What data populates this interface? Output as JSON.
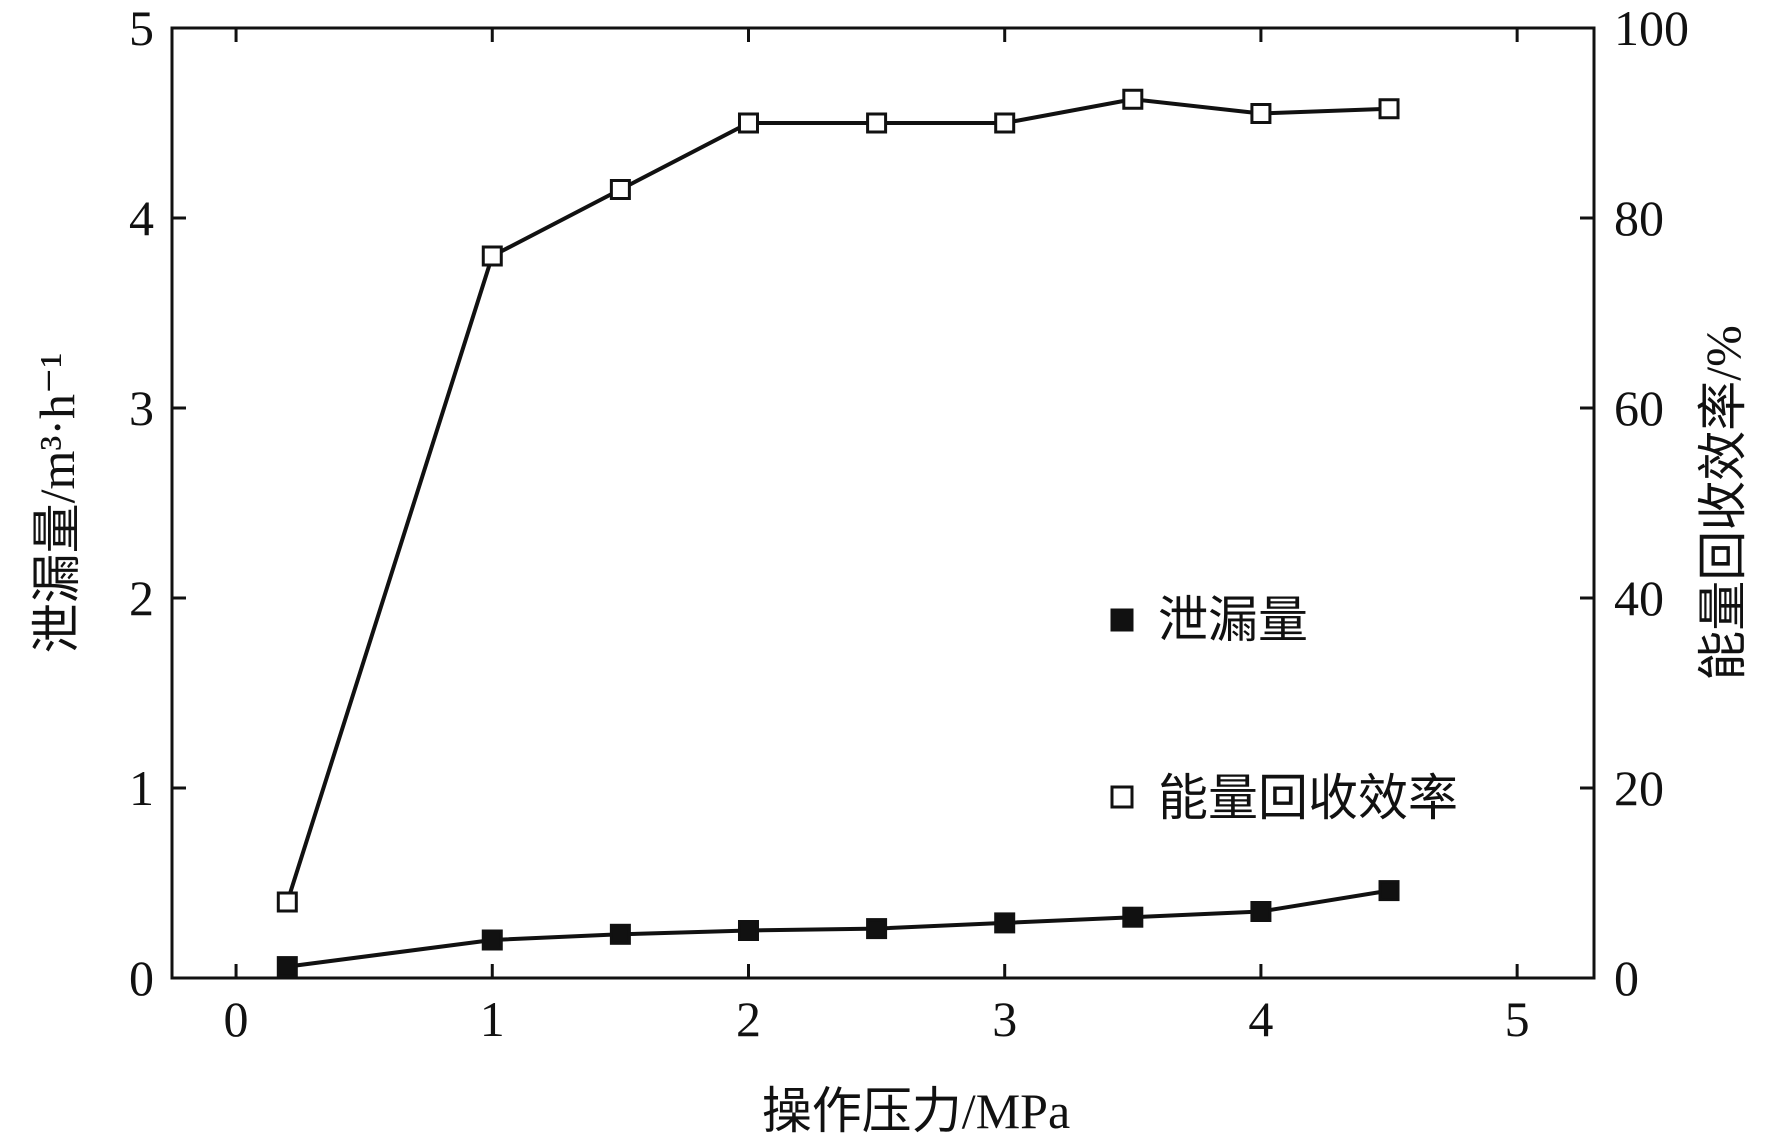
{
  "colors": {
    "ink": "#111111",
    "background": "#ffffff",
    "marker_fill_leakage": "#111111",
    "marker_fill_efficiency": "#ffffff"
  },
  "chart_data": {
    "type": "line",
    "title": "",
    "xlabel": "操作压力/MPa",
    "ylabel_left": "泄漏量/m³·h⁻¹",
    "ylabel_right": "能量回收效率/%",
    "xlim": [
      -0.25,
      5.3
    ],
    "ylim_left": [
      0,
      5
    ],
    "ylim_right": [
      0,
      100
    ],
    "x_ticks": [
      "0",
      "1",
      "2",
      "3",
      "4",
      "5"
    ],
    "y_left_ticks": [
      "0",
      "1",
      "2",
      "3",
      "4",
      "5"
    ],
    "y_right_ticks": [
      "0",
      "20",
      "40",
      "60",
      "80",
      "100"
    ],
    "grid": false,
    "legend_position": "lower-right",
    "series": [
      {
        "name": "泄漏量",
        "axis": "left",
        "marker": "filled-square",
        "x": [
          0.2,
          1.0,
          1.5,
          2.0,
          2.5,
          3.0,
          3.5,
          4.0,
          4.5
        ],
        "y": [
          0.06,
          0.2,
          0.23,
          0.25,
          0.26,
          0.29,
          0.32,
          0.35,
          0.46
        ]
      },
      {
        "name": "能量回收效率",
        "axis": "right",
        "marker": "open-square",
        "x": [
          0.2,
          1.0,
          1.5,
          2.0,
          2.5,
          3.0,
          3.5,
          4.0,
          4.5
        ],
        "y": [
          8,
          76,
          83,
          90,
          90,
          90,
          92.5,
          91,
          91.5
        ]
      }
    ]
  }
}
